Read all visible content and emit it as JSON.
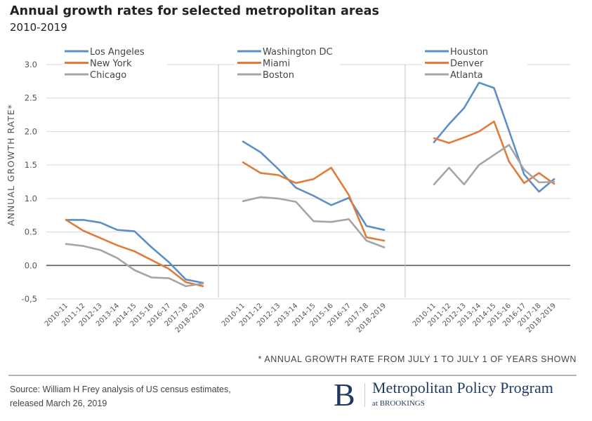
{
  "header": {
    "title": "Annual growth rates for selected metropolitan areas",
    "subtitle": "2010-2019"
  },
  "footer": {
    "footnote": "* ANNUAL GROWTH RATE FROM JULY 1 TO JULY 1 OF YEARS SHOWN",
    "source_line1": "Source: William H Frey analysis of US census estimates,",
    "source_line2": "released March 26, 2019",
    "brand_letter": "B",
    "brand_name": "Metropolitan Policy Program",
    "brand_sub": "at BROOKINGS"
  },
  "colors": {
    "blue": "#5b8fc9",
    "orange": "#e07b39",
    "gray": "#a5a5a5",
    "grid": "#d9d9d9",
    "zero_line": "#595959",
    "divider": "#bfbfbf"
  },
  "chart_data": {
    "type": "line",
    "title": "Annual growth rates for selected metropolitan areas",
    "subtitle": "2010-2019",
    "ylabel": "ANNUAL GROWTH RATE*",
    "xlabel": "",
    "ylim": [
      -0.5,
      3.0
    ],
    "yticks": [
      3.0,
      2.5,
      2.0,
      1.5,
      1.0,
      0.5,
      0.0,
      -0.5
    ],
    "ytick_labels": [
      "3.0",
      "2.5",
      "2.0",
      "1.5",
      "1.0",
      "0.5",
      "0.0",
      "-0,5"
    ],
    "grid": true,
    "legend_position": "top-left of each panel",
    "categories": [
      "2010-11",
      "2011-12",
      "2012-13",
      "2013-14",
      "2014-15",
      "2015-16",
      "2016-17",
      "2017-18",
      "2018-2019"
    ],
    "panels": [
      {
        "series": [
          {
            "name": "Los Angeles",
            "color": "#5b8fc9",
            "values": [
              0.68,
              0.68,
              0.64,
              0.53,
              0.51,
              0.27,
              0.05,
              -0.21,
              -0.26
            ]
          },
          {
            "name": "New York",
            "color": "#e07b39",
            "values": [
              0.68,
              0.52,
              0.41,
              0.3,
              0.21,
              0.08,
              -0.05,
              -0.25,
              -0.31
            ]
          },
          {
            "name": "Chicago",
            "color": "#a5a5a5",
            "values": [
              0.32,
              0.29,
              0.23,
              0.11,
              -0.07,
              -0.18,
              -0.19,
              -0.31,
              -0.27
            ]
          }
        ]
      },
      {
        "series": [
          {
            "name": "Washington DC",
            "color": "#5b8fc9",
            "values": [
              1.85,
              1.69,
              1.44,
              1.16,
              1.04,
              0.9,
              1.01,
              0.59,
              0.53
            ]
          },
          {
            "name": "Miami",
            "color": "#e07b39",
            "values": [
              1.54,
              1.38,
              1.35,
              1.23,
              1.29,
              1.46,
              1.05,
              0.42,
              0.37
            ]
          },
          {
            "name": "Boston",
            "color": "#a5a5a5",
            "values": [
              0.96,
              1.02,
              1.0,
              0.95,
              0.66,
              0.65,
              0.69,
              0.37,
              0.27
            ]
          }
        ]
      },
      {
        "series": [
          {
            "name": "Houston",
            "color": "#5b8fc9",
            "values": [
              1.84,
              2.11,
              2.35,
              2.73,
              2.65,
              2.01,
              1.36,
              1.1,
              1.29
            ]
          },
          {
            "name": "Denver",
            "color": "#e07b39",
            "values": [
              1.9,
              1.83,
              1.91,
              2.0,
              2.15,
              1.55,
              1.23,
              1.38,
              1.22
            ]
          },
          {
            "name": "Atlanta",
            "color": "#a5a5a5",
            "values": [
              1.21,
              1.46,
              1.21,
              1.5,
              1.65,
              1.8,
              1.43,
              1.24,
              1.25
            ]
          }
        ]
      }
    ],
    "footnote": "* ANNUAL GROWTH RATE FROM JULY 1 TO JULY 1 OF YEARS SHOWN"
  }
}
